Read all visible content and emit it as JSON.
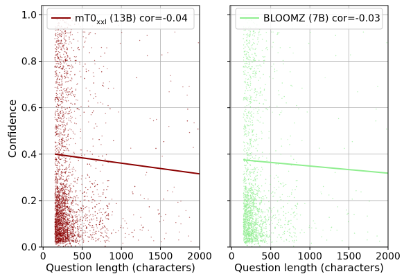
{
  "chart_data": [
    {
      "type": "scatter",
      "title": "",
      "xlabel": "Question length (characters)",
      "ylabel": "Confidence",
      "xlim": [
        -20,
        2000
      ],
      "ylim": [
        0,
        1.04
      ],
      "xticks": [
        "0",
        "500",
        "1000",
        "1500",
        "2000"
      ],
      "yticks": [
        "0.0",
        "0.2",
        "0.4",
        "0.6",
        "0.8",
        "1.0"
      ],
      "xtick_values": [
        0,
        500,
        1000,
        1500,
        2000
      ],
      "ytick_values": [
        0.0,
        0.2,
        0.4,
        0.6,
        0.8,
        1.0
      ],
      "grid": true,
      "legend_position": "top-right",
      "color": "#8b0000",
      "series": [
        {
          "name": "mT0 (13B) cor=-0.04",
          "legend_main": "mT0",
          "legend_sub": "xxl",
          "legend_rest": " (13B) cor=-0.04",
          "trend": {
            "x": [
              150,
              2000
            ],
            "y": [
              0.4,
              0.315
            ]
          }
        }
      ]
    },
    {
      "type": "scatter",
      "title": "",
      "xlabel": "Question length (characters)",
      "ylabel": "",
      "xlim": [
        -20,
        2000
      ],
      "ylim": [
        0,
        1.04
      ],
      "xticks": [
        "0",
        "500",
        "1000",
        "1500",
        "2000"
      ],
      "xtick_values": [
        0,
        500,
        1000,
        1500,
        2000
      ],
      "ytick_values": [
        0.0,
        0.2,
        0.4,
        0.6,
        0.8,
        1.0
      ],
      "grid": true,
      "legend_position": "top-right",
      "color": "#90ee90",
      "series": [
        {
          "name": "BLOOMZ (7B) cor=-0.03",
          "legend_main": "BLOOMZ (7B) cor=-0.03",
          "trend": {
            "x": [
              150,
              2000
            ],
            "y": [
              0.375,
              0.318
            ]
          }
        }
      ]
    }
  ]
}
